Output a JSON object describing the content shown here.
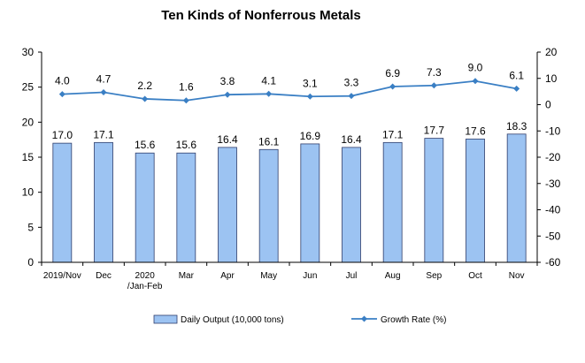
{
  "chart_data": {
    "type": "bar",
    "title": "Ten Kinds of Nonferrous Metals",
    "categories": [
      "2019/Nov",
      "Dec",
      "2020\n/Jan-Feb",
      "Mar",
      "Apr",
      "May",
      "Jun",
      "Jul",
      "Aug",
      "Sep",
      "Oct",
      "Nov"
    ],
    "series": [
      {
        "name": "Daily Output (10,000 tons)",
        "type": "bar",
        "axis": "left",
        "values": [
          17.0,
          17.1,
          15.6,
          15.6,
          16.4,
          16.1,
          16.9,
          16.4,
          17.1,
          17.7,
          17.6,
          18.3
        ],
        "labels": [
          "17.0",
          "17.1",
          "15.6",
          "15.6",
          "16.4",
          "16.1",
          "16.9",
          "16.4",
          "17.1",
          "17.7",
          "17.6",
          "18.3"
        ]
      },
      {
        "name": "Growth Rate (%)",
        "type": "line",
        "axis": "right",
        "values": [
          4.0,
          4.7,
          2.2,
          1.6,
          3.8,
          4.1,
          3.1,
          3.3,
          6.9,
          7.3,
          9.0,
          6.1
        ],
        "labels": [
          "4.0",
          "4.7",
          "2.2",
          "1.6",
          "3.8",
          "4.1",
          "3.1",
          "3.3",
          "6.9",
          "7.3",
          "9.0",
          "6.1"
        ]
      }
    ],
    "left_axis": {
      "ylim": [
        0,
        30
      ],
      "ticks": [
        "0",
        "5",
        "10",
        "15",
        "20",
        "25",
        "30"
      ]
    },
    "right_axis": {
      "ylim": [
        -60,
        20
      ],
      "ticks": [
        "-60",
        "-50",
        "-40",
        "-30",
        "-20",
        "-10",
        "0",
        "10",
        "20"
      ]
    },
    "grid": false,
    "legend_position": "bottom",
    "colors": {
      "bar_fill": "#9cc3f2",
      "bar_stroke": "#2e3d6b",
      "line": "#3a7fc4",
      "axis": "#000000"
    }
  }
}
